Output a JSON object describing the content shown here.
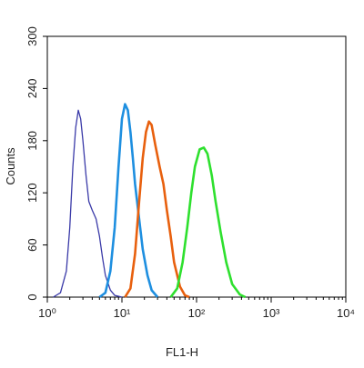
{
  "chart_data": {
    "type": "line",
    "xlabel": "FL1-H",
    "ylabel": "Counts",
    "xscale": "log",
    "xlim": [
      1,
      10000
    ],
    "ylim": [
      0,
      300
    ],
    "xticks": [
      {
        "value": 1,
        "label": "10⁰"
      },
      {
        "value": 10,
        "label": "10¹"
      },
      {
        "value": 100,
        "label": "10²"
      },
      {
        "value": 1000,
        "label": "10³"
      },
      {
        "value": 10000,
        "label": "10⁴"
      }
    ],
    "yticks": [
      0,
      60,
      120,
      180,
      240,
      300
    ],
    "series": [
      {
        "color": "#3a3aa8",
        "x": [
          1.2,
          1.5,
          1.8,
          2.0,
          2.2,
          2.4,
          2.6,
          2.8,
          3.0,
          3.3,
          3.6,
          4.0,
          4.5,
          5.0,
          5.5,
          6.0,
          7.0,
          8.0,
          10
        ],
        "values": [
          0,
          5,
          30,
          80,
          150,
          195,
          215,
          205,
          180,
          140,
          110,
          100,
          90,
          70,
          45,
          25,
          8,
          2,
          0
        ]
      },
      {
        "color": "#1e8fe0",
        "x": [
          5,
          6,
          7,
          8,
          9,
          10,
          11,
          12,
          13,
          14,
          15,
          17,
          19,
          22,
          25,
          30
        ],
        "values": [
          0,
          5,
          30,
          80,
          150,
          205,
          222,
          215,
          190,
          160,
          130,
          90,
          55,
          25,
          8,
          0
        ]
      },
      {
        "color": "#e8600e",
        "x": [
          11,
          13,
          15,
          17,
          19,
          21,
          23,
          25,
          28,
          32,
          36,
          40,
          45,
          50,
          60,
          70,
          80
        ],
        "values": [
          0,
          10,
          50,
          110,
          160,
          190,
          202,
          198,
          175,
          150,
          130,
          100,
          70,
          40,
          12,
          2,
          0
        ]
      },
      {
        "color": "#2ee02e",
        "x": [
          45,
          55,
          65,
          75,
          85,
          95,
          110,
          125,
          140,
          160,
          180,
          210,
          250,
          300,
          380,
          450
        ],
        "values": [
          0,
          10,
          40,
          80,
          120,
          150,
          170,
          172,
          165,
          140,
          110,
          75,
          40,
          15,
          3,
          0
        ]
      }
    ]
  }
}
